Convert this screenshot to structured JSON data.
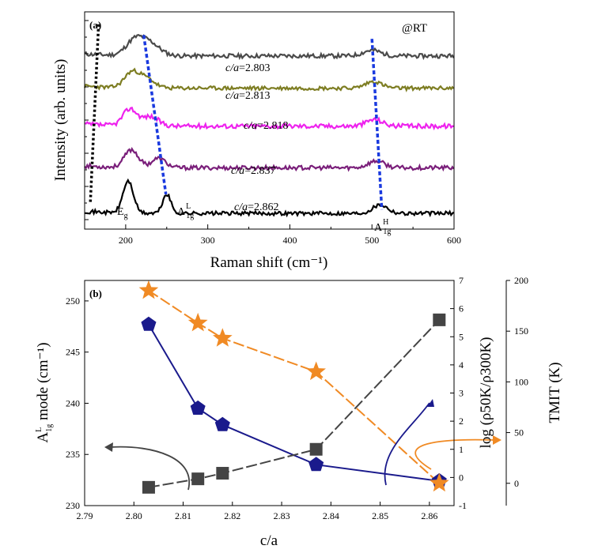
{
  "chart_data": [
    {
      "type": "line",
      "panel": "(a)",
      "annotation": "@RT",
      "xlabel": "Raman shift (cm⁻¹)",
      "ylabel": "Intensity (arb. units)",
      "xlim": [
        150,
        600
      ],
      "xticks": [
        200,
        300,
        400,
        500,
        600
      ],
      "y_ticks_labeled": false,
      "series": [
        {
          "name": "c/a=2.803",
          "color": "#4a4a4a",
          "offset": 0.83,
          "peaks": [
            [
              210,
              0.07,
              15
            ],
            [
              228,
              0.07,
              18
            ],
            [
              500,
              0.03,
              15
            ]
          ],
          "noise": 0.011,
          "seed": 11
        },
        {
          "name": "c/a=2.813",
          "color": "#7d7d22",
          "offset": 0.66,
          "peaks": [
            [
              207,
              0.08,
              13
            ],
            [
              225,
              0.05,
              14
            ],
            [
              502,
              0.035,
              14
            ]
          ],
          "noise": 0.01,
          "seed": 23
        },
        {
          "name": "c/a=2.818",
          "color": "#ee22ee",
          "offset": 0.46,
          "peaks": [
            [
              205,
              0.09,
              12
            ],
            [
              230,
              0.05,
              14
            ],
            [
              503,
              0.035,
              14
            ]
          ],
          "noise": 0.012,
          "seed": 37
        },
        {
          "name": "c/a=2.837",
          "color": "#7a1f7a",
          "offset": 0.24,
          "peaks": [
            [
              207,
              0.095,
              12
            ],
            [
              240,
              0.05,
              12
            ],
            [
              505,
              0.035,
              14
            ]
          ],
          "noise": 0.011,
          "seed": 53
        },
        {
          "name": "c/a=2.862",
          "color": "#000000",
          "offset": 0.0,
          "peaks": [
            [
              203,
              0.17,
              9
            ],
            [
              250,
              0.1,
              7
            ],
            [
              510,
              0.045,
              13
            ]
          ],
          "noise": 0.01,
          "seed": 71
        }
      ],
      "peak_labels": [
        {
          "base": "E",
          "sub": "g",
          "sup": ""
        },
        {
          "base": "A",
          "sub": "1g",
          "sup": "L"
        },
        {
          "base": "A",
          "sub": "1g",
          "sup": "H"
        }
      ],
      "guide_lines": [
        {
          "style": "black-dotted",
          "points": [
            [
              157,
              0.06
            ],
            [
              167,
              1.0
            ]
          ]
        },
        {
          "style": "blue-dashed",
          "points": [
            [
              222,
              0.94
            ],
            [
              249,
              0.1
            ]
          ]
        },
        {
          "style": "blue-dashed",
          "points": [
            [
              500,
              0.92
            ],
            [
              512,
              0.02
            ]
          ]
        }
      ]
    },
    {
      "type": "line",
      "panel": "(b)",
      "xlabel": "c/a",
      "ylabel_left": {
        "base": "A",
        "sup": "L",
        "sub": "1g",
        "rest": " mode (cm⁻¹)"
      },
      "ylabel_right1": "log (ρ50K/ρ300K)",
      "ylabel_right2": "TMIT (K)",
      "xlim": [
        2.79,
        2.865
      ],
      "xticks": [
        "2.79",
        "2.80",
        "2.81",
        "2.82",
        "2.83",
        "2.84",
        "2.85",
        "2.86"
      ],
      "ylim_left": [
        230,
        252
      ],
      "yticks_left": [
        "230",
        "235",
        "240",
        "245",
        "250"
      ],
      "ylim_right1": [
        -1,
        7
      ],
      "yticks_right1": [
        "-1",
        "0",
        "1",
        "2",
        "3",
        "4",
        "5",
        "6",
        "7"
      ],
      "ylim_right2": [
        -22,
        200
      ],
      "yticks_right2": [
        "0",
        "50",
        "100",
        "150",
        "200"
      ],
      "series": [
        {
          "name": "A1g^L mode",
          "axis": "left",
          "color": "#1a1a8c",
          "marker": "pentagon",
          "x": [
            2.803,
            2.813,
            2.818,
            2.837,
            2.862
          ],
          "y": [
            247.7,
            239.5,
            237.9,
            234.0,
            232.4
          ]
        },
        {
          "name": "log (rho50K/rho300K)",
          "axis": "right1",
          "color": "#444444",
          "marker": "square",
          "x": [
            2.803,
            2.813,
            2.818,
            2.837,
            2.862
          ],
          "y": [
            -0.35,
            -0.05,
            0.15,
            1.0,
            5.6
          ]
        },
        {
          "name": "TMIT",
          "axis": "right2",
          "color": "#f08a24",
          "marker": "star",
          "x": [
            2.803,
            2.813,
            2.818,
            2.837,
            2.862
          ],
          "y": [
            190,
            158,
            143,
            110,
            0
          ]
        }
      ]
    }
  ]
}
